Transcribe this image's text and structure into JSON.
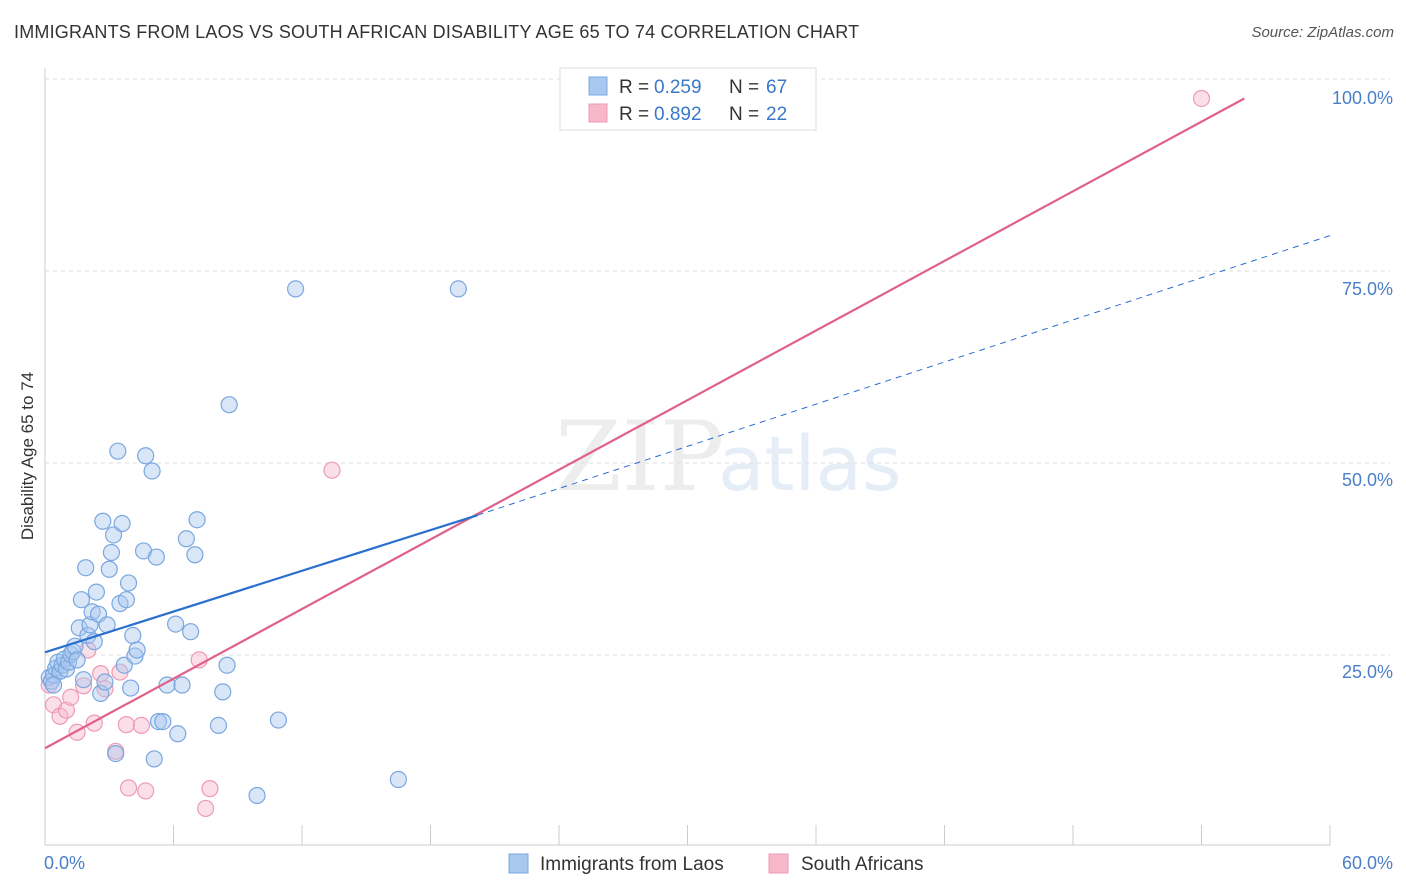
{
  "header": {
    "title": "IMMIGRANTS FROM LAOS VS SOUTH AFRICAN DISABILITY AGE 65 TO 74 CORRELATION CHART",
    "source": "Source: ZipAtlas.com"
  },
  "watermark": {
    "zip": "ZIP",
    "atlas": "atlas"
  },
  "colors": {
    "blue_fill": "#a9c8f0",
    "blue_stroke": "#7aa7df",
    "blue_line": "#2b6fcf",
    "pink_fill": "#f7b8cb",
    "pink_stroke": "#ee9ab5",
    "pink_line": "#e0608a",
    "grid": "#dddddd",
    "tick_label": "#4a7fc8"
  },
  "legend": {
    "rows": [
      {
        "r_label": "R = ",
        "r_value": "0.259",
        "n_label": "N = ",
        "n_value": "67"
      },
      {
        "r_label": "R = ",
        "r_value": "0.892",
        "n_label": "N = ",
        "n_value": "22"
      }
    ]
  },
  "chart_data": {
    "type": "scatter",
    "title": "IMMIGRANTS FROM LAOS VS SOUTH AFRICAN DISABILITY AGE 65 TO 74 CORRELATION CHART",
    "xlabel": "",
    "ylabel": "Disability Age 65 to 74",
    "xlim": [
      0,
      60
    ],
    "ylim": [
      2,
      104
    ],
    "x_tick_labels": [
      "0.0%",
      "60.0%"
    ],
    "y_ticks": [
      25,
      50,
      75,
      100
    ],
    "y_tick_labels": [
      "25.0%",
      "50.0%",
      "75.0%",
      "100.0%"
    ],
    "grid": true,
    "legend_position": "top-center",
    "series": [
      {
        "name": "Immigrants from Laos",
        "color": "#a9c8f0",
        "R": 0.259,
        "N": 67,
        "trend": {
          "x0": 0,
          "y0": 27.3,
          "x1": 20.2,
          "y1": 45.3,
          "dashed_to_x": 60,
          "dashed_to_y": 82
        },
        "points": [
          [
            0.2,
            24.0
          ],
          [
            0.3,
            23.5
          ],
          [
            0.4,
            24.3
          ],
          [
            0.5,
            25.2
          ],
          [
            0.6,
            26.0
          ],
          [
            0.7,
            24.8
          ],
          [
            0.8,
            25.6
          ],
          [
            0.9,
            26.4
          ],
          [
            1.0,
            25.1
          ],
          [
            1.1,
            26.0
          ],
          [
            1.2,
            27.0
          ],
          [
            1.3,
            27.4
          ],
          [
            1.4,
            28.1
          ],
          [
            1.5,
            26.3
          ],
          [
            1.6,
            30.5
          ],
          [
            1.7,
            34.2
          ],
          [
            1.8,
            23.7
          ],
          [
            1.9,
            38.4
          ],
          [
            2.0,
            29.5
          ],
          [
            2.1,
            30.9
          ],
          [
            2.2,
            32.6
          ],
          [
            2.3,
            28.7
          ],
          [
            2.4,
            35.2
          ],
          [
            2.5,
            32.3
          ],
          [
            2.6,
            21.9
          ],
          [
            2.7,
            44.5
          ],
          [
            2.8,
            23.4
          ],
          [
            2.9,
            30.9
          ],
          [
            3.0,
            38.2
          ],
          [
            3.1,
            40.4
          ],
          [
            3.2,
            42.7
          ],
          [
            3.3,
            14.0
          ],
          [
            3.4,
            53.7
          ],
          [
            3.5,
            33.7
          ],
          [
            3.6,
            44.2
          ],
          [
            3.7,
            25.6
          ],
          [
            3.8,
            34.2
          ],
          [
            3.9,
            36.4
          ],
          [
            4.0,
            22.6
          ],
          [
            4.1,
            29.5
          ],
          [
            4.2,
            26.8
          ],
          [
            4.3,
            27.6
          ],
          [
            4.6,
            40.6
          ],
          [
            4.7,
            53.1
          ],
          [
            5.0,
            51.1
          ],
          [
            5.1,
            13.3
          ],
          [
            5.2,
            39.8
          ],
          [
            5.3,
            18.2
          ],
          [
            5.5,
            18.2
          ],
          [
            5.7,
            23.0
          ],
          [
            6.1,
            31.0
          ],
          [
            6.2,
            16.6
          ],
          [
            6.4,
            23.0
          ],
          [
            6.6,
            42.2
          ],
          [
            6.8,
            30.0
          ],
          [
            7.0,
            40.1
          ],
          [
            7.1,
            44.7
          ],
          [
            8.1,
            17.7
          ],
          [
            8.3,
            22.1
          ],
          [
            8.5,
            25.6
          ],
          [
            8.6,
            59.8
          ],
          [
            9.9,
            8.5
          ],
          [
            10.9,
            18.4
          ],
          [
            11.7,
            75.0
          ],
          [
            16.5,
            10.6
          ],
          [
            19.3,
            75.0
          ],
          [
            0.4,
            23.0
          ]
        ]
      },
      {
        "name": "South Africans",
        "color": "#f7b8cb",
        "R": 0.892,
        "N": 22,
        "trend": {
          "x0": 0,
          "y0": 14.7,
          "x1": 56,
          "y1": 100
        },
        "points": [
          [
            0.2,
            23.0
          ],
          [
            0.4,
            20.4
          ],
          [
            0.7,
            18.9
          ],
          [
            1.0,
            19.7
          ],
          [
            1.2,
            21.4
          ],
          [
            1.5,
            16.8
          ],
          [
            1.8,
            22.9
          ],
          [
            2.0,
            27.6
          ],
          [
            2.3,
            18.0
          ],
          [
            2.6,
            24.5
          ],
          [
            2.8,
            22.5
          ],
          [
            3.3,
            14.3
          ],
          [
            3.5,
            24.7
          ],
          [
            3.8,
            17.8
          ],
          [
            3.9,
            9.5
          ],
          [
            4.5,
            17.7
          ],
          [
            4.7,
            9.1
          ],
          [
            7.2,
            26.3
          ],
          [
            7.5,
            6.8
          ],
          [
            7.7,
            9.4
          ],
          [
            13.4,
            51.2
          ],
          [
            54.0,
            100.0
          ]
        ]
      }
    ]
  }
}
